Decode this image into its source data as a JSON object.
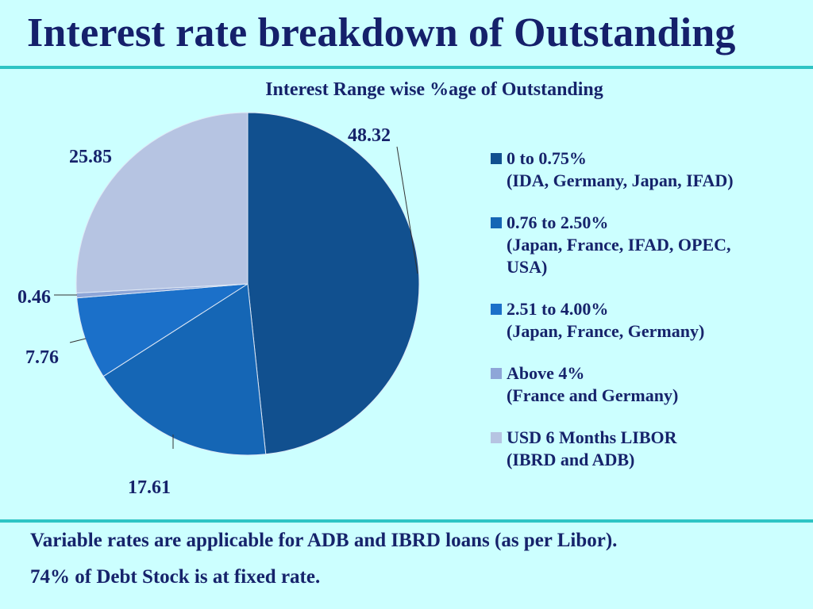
{
  "slide": {
    "title": "Interest rate breakdown of Outstanding",
    "notes": [
      "Variable rates are applicable for ADB and IBRD loans (as per Libor).",
      "74% of Debt Stock is at fixed rate."
    ]
  },
  "chart_data": {
    "type": "pie",
    "title": "Interest Range wise %age of Outstanding",
    "legend_position": "right",
    "slices": [
      {
        "label": "0 to 0.75%",
        "sublabel": "(IDA, Germany, Japan, IFAD)",
        "value": 48.32,
        "value_label": "48.32",
        "color": "#11508f"
      },
      {
        "label": "0.76 to 2.50%",
        "sublabel": "(Japan, France, IFAD, OPEC, USA)",
        "sublabel_lines": [
          "(Japan, France, IFAD, OPEC,",
          "USA)"
        ],
        "value": 17.61,
        "value_label": "17.61",
        "color": "#1566b5"
      },
      {
        "label": "2.51 to 4.00%",
        "sublabel": "(Japan, France, Germany)",
        "value": 7.76,
        "value_label": "7.76",
        "color": "#1b70c9"
      },
      {
        "label": "Above 4%",
        "sublabel": "(France and Germany)",
        "value": 0.46,
        "value_label": "0.46",
        "color": "#8ea6d8"
      },
      {
        "label": "USD 6 Months LIBOR",
        "sublabel": "(IBRD and ADB)",
        "value": 25.85,
        "value_label": "25.85",
        "color": "#b6c4e2"
      }
    ]
  }
}
